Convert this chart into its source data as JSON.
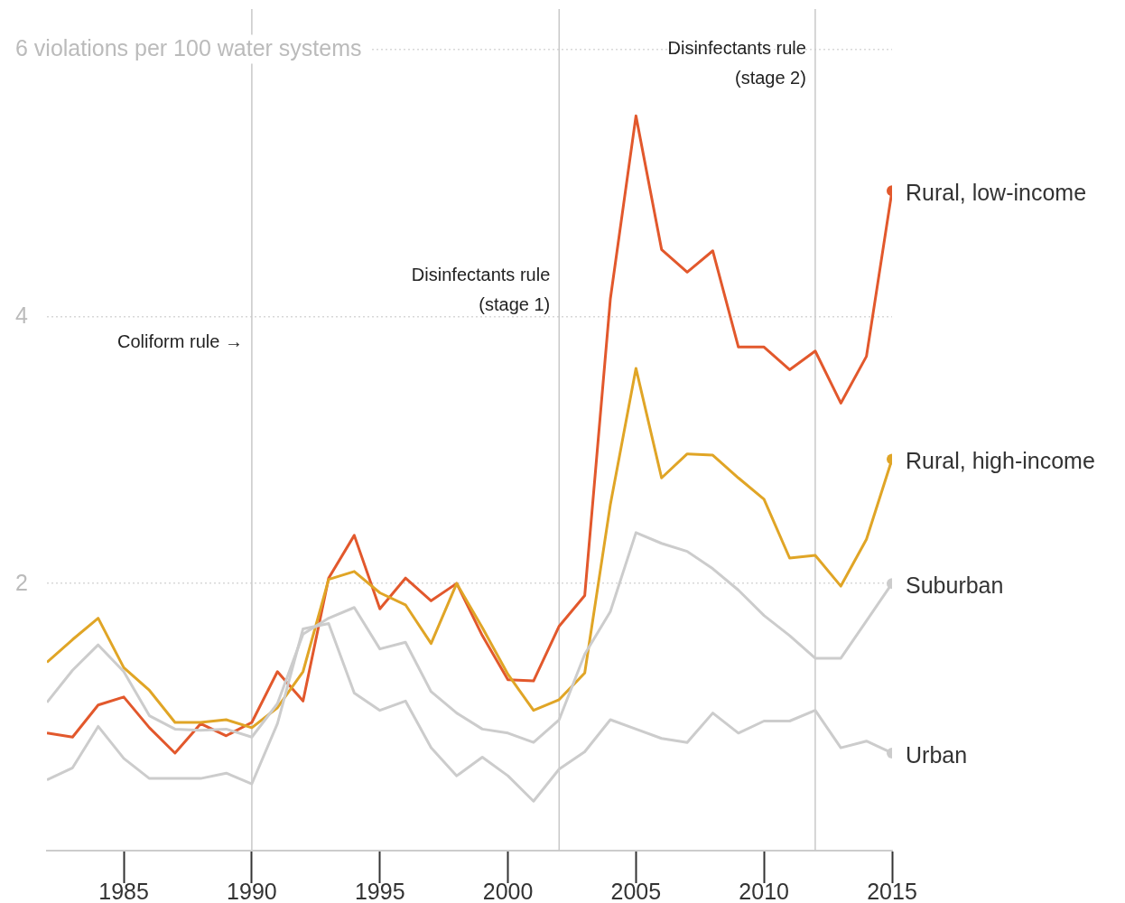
{
  "chart_data": {
    "type": "line",
    "x": [
      1982,
      1983,
      1984,
      1985,
      1986,
      1987,
      1988,
      1989,
      1990,
      1991,
      1992,
      1993,
      1994,
      1995,
      1996,
      1997,
      1998,
      1999,
      2000,
      2001,
      2002,
      2003,
      2004,
      2005,
      2006,
      2007,
      2008,
      2009,
      2010,
      2011,
      2012,
      2013,
      2014,
      2015
    ],
    "series": [
      {
        "name": "Rural, low-income",
        "color": "#e2582c",
        "values": [
          0.88,
          0.85,
          1.09,
          1.15,
          0.92,
          0.73,
          0.95,
          0.86,
          0.96,
          1.34,
          1.12,
          2.04,
          2.36,
          1.81,
          2.04,
          1.87,
          2.0,
          1.61,
          1.28,
          1.27,
          1.68,
          1.91,
          4.13,
          5.5,
          4.5,
          4.33,
          4.49,
          3.77,
          3.77,
          3.6,
          3.74,
          3.35,
          3.7,
          4.94
        ]
      },
      {
        "name": "Rural, high-income",
        "color": "#e0a526",
        "values": [
          1.41,
          1.58,
          1.74,
          1.37,
          1.2,
          0.96,
          0.96,
          0.98,
          0.92,
          1.07,
          1.34,
          2.03,
          2.09,
          1.93,
          1.84,
          1.55,
          2.0,
          1.67,
          1.32,
          1.05,
          1.13,
          1.33,
          2.59,
          3.61,
          2.79,
          2.97,
          2.96,
          2.79,
          2.63,
          2.19,
          2.21,
          1.98,
          2.33,
          2.93
        ]
      },
      {
        "name": "Suburban",
        "color": "#cccccc",
        "values": [
          1.11,
          1.35,
          1.54,
          1.34,
          1.01,
          0.91,
          0.9,
          0.91,
          0.85,
          1.1,
          1.62,
          1.74,
          1.82,
          1.51,
          1.56,
          1.19,
          1.03,
          0.91,
          0.88,
          0.81,
          0.98,
          1.47,
          1.79,
          2.38,
          2.3,
          2.24,
          2.11,
          1.95,
          1.76,
          1.61,
          1.44,
          1.44,
          1.72,
          2.0
        ]
      },
      {
        "name": "Urban",
        "color": "#cccccc",
        "values": [
          0.53,
          0.62,
          0.93,
          0.69,
          0.54,
          0.54,
          0.54,
          0.58,
          0.5,
          0.95,
          1.66,
          1.7,
          1.18,
          1.05,
          1.12,
          0.77,
          0.56,
          0.7,
          0.56,
          0.37,
          0.61,
          0.74,
          0.98,
          0.91,
          0.84,
          0.81,
          1.03,
          0.88,
          0.97,
          0.97,
          1.05,
          0.77,
          0.82,
          0.73
        ]
      }
    ],
    "xlim": [
      1982,
      2015
    ],
    "xticks": [
      1985,
      1990,
      1995,
      2000,
      2005,
      2010,
      2015
    ],
    "ylim": [
      0,
      6.3
    ],
    "yticks": [
      {
        "value": 2,
        "label": "2"
      },
      {
        "value": 4,
        "label": "4"
      },
      {
        "value": 6,
        "label": "6 violations per 100 water systems"
      }
    ],
    "grid": "y",
    "legend": false,
    "ref_lines": [
      {
        "axis": "x",
        "value": 1990,
        "label": "Coliform rule →"
      },
      {
        "axis": "x",
        "value": 2002,
        "label": "Disinfectants rule\n(stage 1)"
      },
      {
        "axis": "x",
        "value": 2012,
        "label": "Disinfectants rule\n(stage 2)"
      }
    ]
  }
}
